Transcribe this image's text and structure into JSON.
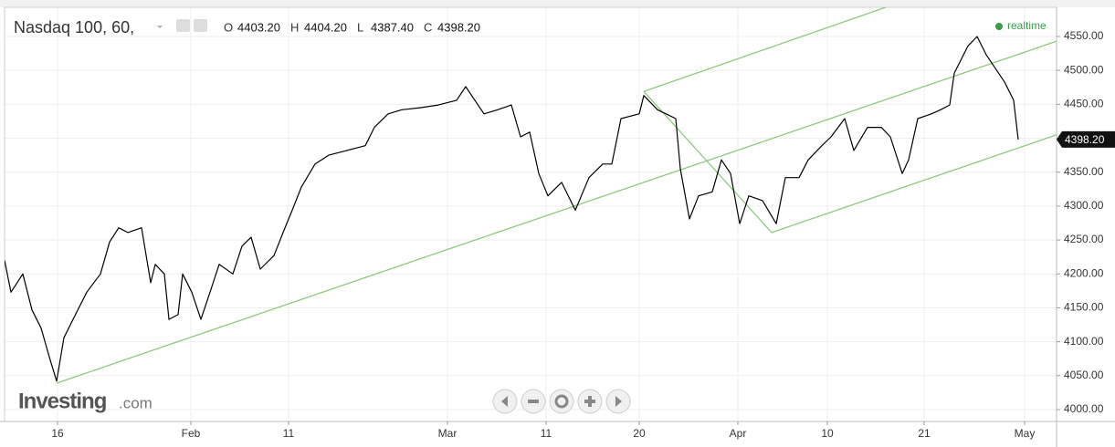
{
  "chart_data": {
    "type": "line",
    "title": "Nasdaq 100, 60,",
    "readout": [
      {
        "name": "O",
        "value": "4403.20"
      },
      {
        "name": "H",
        "value": "4404.20"
      },
      {
        "name": "L",
        "value": "4387.40"
      },
      {
        "name": "C",
        "value": "4398.20"
      }
    ],
    "status": "realtime",
    "logo": {
      "name": "Investing",
      "suffix": ".com"
    },
    "color": "#000000",
    "x": [
      0,
      0.7,
      2,
      3,
      4,
      5,
      5.7,
      6.5,
      7.5,
      9,
      10.5,
      11.5,
      12.5,
      13.5,
      15,
      16,
      16.5,
      17.5,
      18,
      19,
      19.5,
      20.5,
      21.5,
      22.5,
      23.5,
      25,
      26,
      27,
      28,
      29.5,
      30.5,
      31.5,
      32.5,
      34,
      35.5,
      37.5,
      39.5,
      40.5,
      42,
      43.5,
      45.5,
      47.5,
      49.5,
      50.5,
      51.5,
      52.5,
      54,
      55.5,
      56.5,
      57.5,
      58.5,
      59.5,
      61,
      62.5,
      64,
      65.5,
      66.5,
      67.5,
      69.5,
      70,
      71.5,
      73.5,
      74,
      75,
      76,
      77.5,
      78.5,
      79.5,
      80.5,
      81.5,
      83,
      84.5,
      85.5,
      87,
      88,
      89.5,
      90.5,
      92,
      93,
      94.5,
      96,
      97,
      98.3,
      99,
      100,
      101.5,
      102.5,
      103.5,
      104,
      105.5,
      106.5,
      107.5,
      108.5,
      109.5,
      110.5,
      111
    ],
    "values": [
      4220,
      4173,
      4200,
      4147,
      4120,
      4073,
      4042,
      4106,
      4133,
      4173,
      4200,
      4247,
      4268,
      4261,
      4268,
      4187,
      4214,
      4200,
      4133,
      4140,
      4200,
      4173,
      4133,
      4173,
      4214,
      4200,
      4241,
      4254,
      4207,
      4227,
      4261,
      4294,
      4328,
      4362,
      4375,
      4382,
      4389,
      4416,
      4436,
      4442,
      4445,
      4449,
      4456,
      4476,
      4456,
      4436,
      4442,
      4449,
      4402,
      4409,
      4348,
      4315,
      4335,
      4294,
      4342,
      4362,
      4362,
      4429,
      4436,
      4463,
      4442,
      4429,
      4355,
      4281,
      4315,
      4321,
      4368,
      4348,
      4274,
      4315,
      4308,
      4274,
      4342,
      4342,
      4368,
      4389,
      4402,
      4429,
      4382,
      4416,
      4416,
      4402,
      4348,
      4368,
      4429,
      4436,
      4442,
      4449,
      4496,
      4536,
      4550,
      4523,
      4503,
      4483,
      4456,
      4398.2
    ],
    "trend_lines": [
      {
        "color": "#8cc97a",
        "x": [
          5.7,
          115.2
        ],
        "values": [
          4039,
          4543
        ]
      },
      {
        "color": "#8cc97a",
        "x": [
          70,
          96.5
        ],
        "values": [
          4469,
          4593
        ]
      },
      {
        "color": "#8cc97a",
        "x": [
          84,
          115.2
        ],
        "values": [
          4261,
          4405
        ]
      },
      {
        "color": "#8cc97a",
        "x": [
          70,
          84
        ],
        "values": [
          4469,
          4261
        ]
      }
    ],
    "last_price": {
      "value": 4398.2,
      "label": "4398.20"
    },
    "xlim": [
      0,
      115.2
    ],
    "xticks": [
      {
        "value": 5.8,
        "label": "16"
      },
      {
        "value": 20.4,
        "label": "Feb"
      },
      {
        "value": 31.1,
        "label": "11"
      },
      {
        "value": 48.5,
        "label": "Mar"
      },
      {
        "value": 59.3,
        "label": "11"
      },
      {
        "value": 69.5,
        "label": "20"
      },
      {
        "value": 80.3,
        "label": "Apr"
      },
      {
        "value": 90.1,
        "label": "10"
      },
      {
        "value": 100.7,
        "label": "21"
      },
      {
        "value": 111.7,
        "label": "May"
      }
    ],
    "ylim": [
      3982.5,
      4593
    ],
    "yticks": [
      {
        "value": 4000,
        "label": "4000.00"
      },
      {
        "value": 4050,
        "label": "4050.00"
      },
      {
        "value": 4100,
        "label": "4100.00"
      },
      {
        "value": 4150,
        "label": "4150.00"
      },
      {
        "value": 4200,
        "label": "4200.00"
      },
      {
        "value": 4250,
        "label": "4250.00"
      },
      {
        "value": 4300,
        "label": "4300.00"
      },
      {
        "value": 4350,
        "label": "4350.00"
      },
      {
        "value": 4400,
        "label": "4400.00"
      },
      {
        "value": 4450,
        "label": "4450.00"
      },
      {
        "value": 4500,
        "label": "4500.00"
      },
      {
        "value": 4550,
        "label": "4550.00"
      }
    ],
    "grid": true
  }
}
